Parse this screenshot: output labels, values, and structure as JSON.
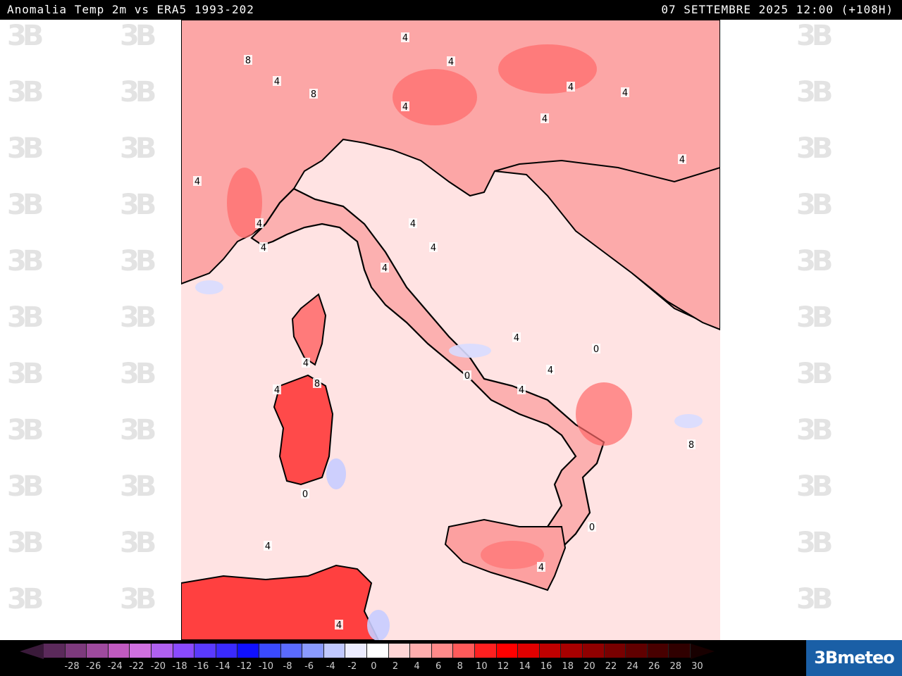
{
  "header": {
    "title": "Anomalia Temp 2m vs ERA5 1993-202",
    "datetime": "07 SETTEMBRE 2025 12:00 (+108H)"
  },
  "watermark": {
    "text": "3B"
  },
  "map": {
    "sea_color": "#ffe3e3",
    "land_color": "#fdb8b8",
    "contour_labels": [
      "4",
      "8",
      "4",
      "4",
      "8",
      "4",
      "4",
      "4",
      "4",
      "4",
      "4",
      "4",
      "4",
      "4",
      "4",
      "4",
      "0",
      "4",
      "4",
      "0",
      "4",
      "8",
      "4",
      "4",
      "0",
      "0",
      "4",
      "4",
      "8",
      "4"
    ]
  },
  "colorbar": {
    "colors": [
      "#3a1a3a",
      "#5b2a5b",
      "#7d3a7d",
      "#9e4a9e",
      "#c05ac0",
      "#d070e0",
      "#b060f0",
      "#8a4aff",
      "#5a3aff",
      "#3a2aff",
      "#1010ff",
      "#3a4aff",
      "#5a6aff",
      "#8a9aff",
      "#c0c8ff",
      "#ececff",
      "#ffffff",
      "#ffd6d6",
      "#ffaeae",
      "#ff8a8a",
      "#ff5a5a",
      "#ff2020",
      "#ff0000",
      "#e00000",
      "#c00000",
      "#a80000",
      "#900000",
      "#780000",
      "#600000",
      "#480000",
      "#300000",
      "#180000"
    ],
    "labels": [
      "-28",
      "-26",
      "-24",
      "-22",
      "-20",
      "-18",
      "-16",
      "-14",
      "-12",
      "-10",
      "-8",
      "-6",
      "-4",
      "-2",
      "0",
      "2",
      "4",
      "6",
      "8",
      "10",
      "12",
      "14",
      "16",
      "18",
      "20",
      "22",
      "24",
      "26",
      "28",
      "30"
    ]
  },
  "logo": {
    "text": "3Bmeteo"
  }
}
